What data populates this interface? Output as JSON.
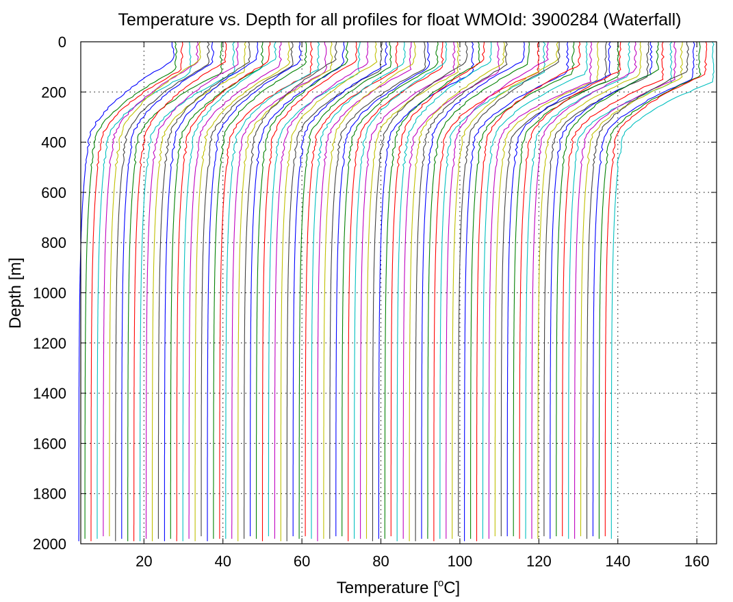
{
  "chart_data": {
    "type": "line",
    "title": "Temperature vs. Depth for all profiles for float WMOId: 3900284 (Waterfall)",
    "xlabel_prefix": "Temperature [",
    "xlabel_sup": "o",
    "xlabel_suffix": "C]",
    "ylabel": "Depth [m]",
    "xlim": [
      4,
      165
    ],
    "ylim": [
      0,
      2000
    ],
    "y_reversed": true,
    "x_ticks": [
      20,
      40,
      60,
      80,
      100,
      120,
      140,
      160
    ],
    "y_ticks": [
      0,
      200,
      400,
      600,
      800,
      1000,
      1200,
      1400,
      1600,
      1800,
      2000
    ],
    "grid": "dotted",
    "legend": "none",
    "waterfall": {
      "profile_count": 88,
      "offset_per_profile_degC": 1.55,
      "first_profile_surface_temp_degC": 27.0,
      "first_profile_thermocline_depth_m": 100,
      "first_profile_temp_at_400m_degC": 6.0,
      "first_profile_deep_temp_degC": 3.5,
      "first_profile_max_depth_m": 1985
    },
    "series_colors": [
      "#0000ff",
      "#008000",
      "#ff0000",
      "#00bfbf",
      "#bf00bf",
      "#bfbf00",
      "#404040"
    ]
  }
}
